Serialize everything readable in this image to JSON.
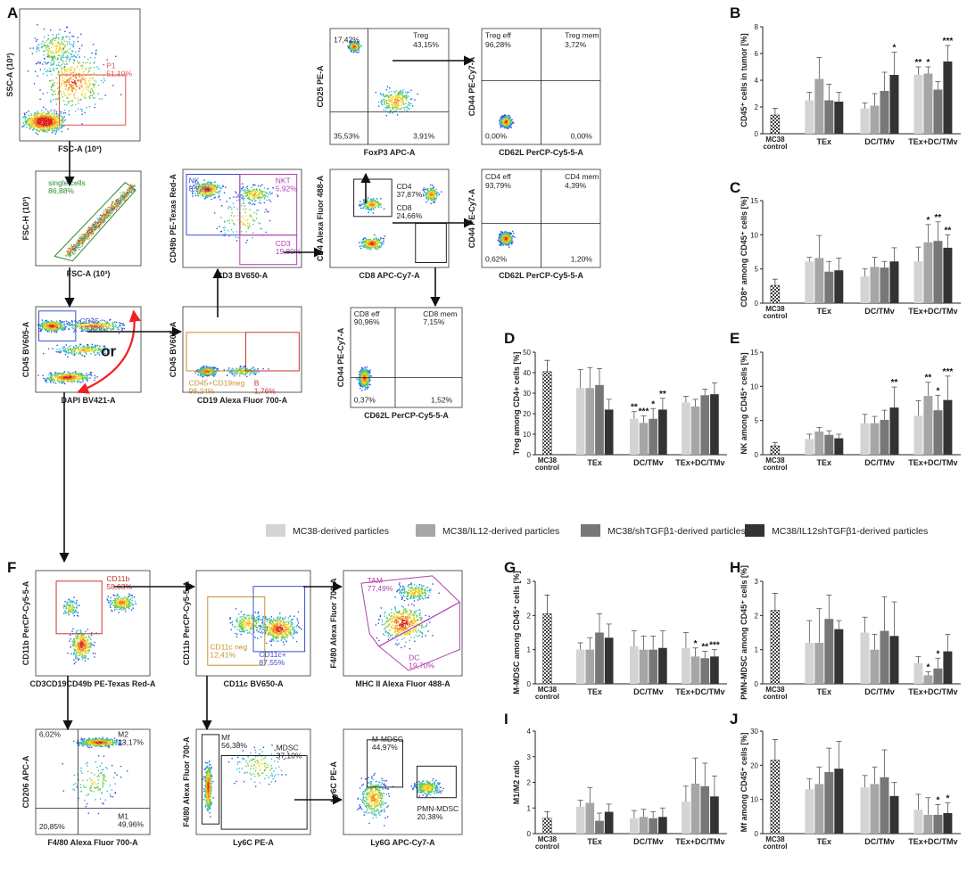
{
  "panel_labels": [
    "A",
    "B",
    "C",
    "D",
    "E",
    "F",
    "G",
    "H",
    "I",
    "J"
  ],
  "flow_panels": [
    {
      "id": "p1",
      "x_label": "FSC-A (10³)",
      "y_label": "SSC-A (10³)",
      "gates": [
        {
          "name": "P1",
          "value": "51,10%",
          "color": "#e0524f"
        }
      ]
    },
    {
      "id": "single",
      "x_label": "FSC-A (10³)",
      "y_label": "FSC-H (10³)",
      "gates": [
        {
          "name": "single cells",
          "value": "86,88%",
          "color": "#2d8a2d"
        }
      ]
    },
    {
      "id": "cd45",
      "x_label": "DAPI BV421-A",
      "y_label": "CD45 BV605-A",
      "gates": [
        {
          "name": "CD45",
          "value": "13,82%",
          "color": "#3b4fd0"
        }
      ],
      "annotation": "or"
    },
    {
      "id": "cd19",
      "x_label": "CD19 Alexa Fluor 700-A",
      "y_label": "CD45 BV605-A",
      "gates": [
        {
          "name": "CD45+CD19neg",
          "value": "98,24%",
          "color": "#c8922f"
        },
        {
          "name": "B",
          "value": "1,76%",
          "color": "#c33"
        }
      ]
    },
    {
      "id": "cd49b",
      "x_label": "CD3 BV650-A",
      "y_label": "CD49b PE-Texas Red-A",
      "gates": [
        {
          "name": "NK",
          "value": "8,22%",
          "color": "#3b4fd0"
        },
        {
          "name": "NKT",
          "value": "5,92%",
          "color": "#b13fb1"
        },
        {
          "name": "CD3",
          "value": "19,80%",
          "color": "#b13fb1"
        }
      ]
    },
    {
      "id": "cd25",
      "x_label": "FoxP3 APC-A",
      "y_label": "CD25 PE-A",
      "quadrants": [
        "17,42%",
        "Treg",
        "43,15%",
        "35,53%",
        "3,91%"
      ]
    },
    {
      "id": "tregq",
      "x_label": "CD62L PerCP-Cy5-5-A",
      "y_label": "CD44 PE-Cy7-A",
      "quadrants": [
        "Treg eff",
        "96,28%",
        "Treg mem",
        "3,72%",
        "0,00%",
        "0,00%"
      ]
    },
    {
      "id": "cd4cd8",
      "x_label": "CD8 APC-Cy7-A",
      "y_label": "CD4 Alexa Fluor 488-A",
      "gates": [
        {
          "name": "CD4",
          "value": "37,87%",
          "color": "#222"
        },
        {
          "name": "CD8",
          "value": "24,66%",
          "color": "#222"
        }
      ]
    },
    {
      "id": "cd4q",
      "x_label": "CD62L PerCP-Cy5-5-A",
      "y_label": "CD44 PE-Cy7-A",
      "quadrants": [
        "CD4 eff",
        "93,79%",
        "CD4 mem",
        "4,39%",
        "0,62%",
        "1,20%"
      ]
    },
    {
      "id": "cd8q",
      "x_label": "CD62L PerCP-Cy5-5-A",
      "y_label": "CD44 PE-Cy7-A",
      "quadrants": [
        "CD8 eff",
        "90,96%",
        "CD8 mem",
        "7,15%",
        "0,37%",
        "1,52%"
      ]
    },
    {
      "id": "cd11b",
      "x_label": "CD3CD19CD49b PE-Texas Red-A",
      "y_label": "CD11b PerCP-Cy5-5-A",
      "gates": [
        {
          "name": "CD11b",
          "value": "58,63%",
          "color": "#c33"
        }
      ]
    },
    {
      "id": "cd11c",
      "x_label": "CD11c BV650-A",
      "y_label": "CD11b PerCP-Cy5-5-A",
      "gates": [
        {
          "name": "CD11c neg",
          "value": "12,41%",
          "color": "#c8922f"
        },
        {
          "name": "CD11c+",
          "value": "87,55%",
          "color": "#3b4fd0"
        }
      ]
    },
    {
      "id": "mhc",
      "x_label": "MHC II Alexa Fluor 488-A",
      "y_label": "F4/80 Alexa Fluor 700-A",
      "gates": [
        {
          "name": "TAM",
          "value": "77,49%",
          "color": "#b13fb1"
        },
        {
          "name": "DC",
          "value": "19,70%",
          "color": "#b13fb1"
        }
      ]
    },
    {
      "id": "cd206",
      "x_label": "F4/80 Alexa Fluor 700-A",
      "y_label": "CD206 APC-A",
      "quadrants": [
        "6,02%",
        "M2",
        "23,17%",
        "20,85%",
        "M1",
        "49,96%"
      ]
    },
    {
      "id": "ly6c",
      "x_label": "Ly6C PE-A",
      "y_label": "F4/80 Alexa Fluor 700-A",
      "gates": [
        {
          "name": "Mf",
          "value": "56,38%",
          "color": "#222"
        },
        {
          "name": "MDSC",
          "value": "37,10%",
          "color": "#222"
        }
      ]
    },
    {
      "id": "ly6g",
      "x_label": "Ly6G APC-Cy7-A",
      "y_label": "Ly6C PE-A",
      "gates": [
        {
          "name": "M-MDSC",
          "value": "44,97%",
          "color": "#222"
        },
        {
          "name": "PMN-MDSC",
          "value": "20,38%",
          "color": "#222"
        }
      ]
    }
  ],
  "legend": [
    "MC38-derived particles",
    "MC38/IL12-derived particles",
    "MC38/shTGFβ1-derived particles",
    "MC38/IL12shTGFβ1-derived particles"
  ],
  "series_colors": [
    "#d4d4d4",
    "#a6a6a6",
    "#777777",
    "#333333"
  ],
  "control_color": "#555555",
  "chart_data": [
    {
      "panel": "B",
      "type": "bar",
      "ylabel": "CD45⁺ cells in tumor [%]",
      "ylim": [
        0,
        8
      ],
      "yticks": [
        0,
        2,
        4,
        6,
        8
      ],
      "control_label": "MC38 control",
      "control": {
        "value": 1.4,
        "err": 0.5
      },
      "categories": [
        "TEx",
        "DC/TMv",
        "TEx+DC/TMv"
      ],
      "series": [
        {
          "name": "MC38-derived particles",
          "values": [
            2.5,
            1.9,
            4.4
          ],
          "err": [
            0.6,
            0.4,
            0.6
          ],
          "stars": [
            "",
            "",
            "**"
          ]
        },
        {
          "name": "MC38/IL12-derived particles",
          "values": [
            4.1,
            2.1,
            4.5
          ],
          "err": [
            1.6,
            0.9,
            0.5
          ],
          "stars": [
            "",
            "",
            "*"
          ]
        },
        {
          "name": "MC38/shTGFβ1-derived particles",
          "values": [
            2.5,
            3.2,
            3.3
          ],
          "err": [
            1.2,
            1.4,
            0.6
          ],
          "stars": [
            "",
            "",
            ""
          ]
        },
        {
          "name": "MC38/IL12shTGFβ1-derived particles",
          "values": [
            2.4,
            4.4,
            5.4
          ],
          "err": [
            0.7,
            1.7,
            1.2
          ],
          "stars": [
            "",
            "*",
            "***"
          ]
        }
      ]
    },
    {
      "panel": "C",
      "type": "bar",
      "ylabel": "CD8⁺ among CD45⁺ cells [%]",
      "ylim": [
        0,
        15
      ],
      "yticks": [
        0,
        5,
        10,
        15
      ],
      "control_label": "MC38 control",
      "control": {
        "value": 2.6,
        "err": 0.9
      },
      "categories": [
        "TEx",
        "DC/TMv",
        "TEx+DC/TMv"
      ],
      "series": [
        {
          "name": "MC38-derived particles",
          "values": [
            6.1,
            3.9,
            6.1
          ],
          "err": [
            0.6,
            1.1,
            2.1
          ],
          "stars": [
            "",
            "",
            ""
          ]
        },
        {
          "name": "MC38/IL12-derived particles",
          "values": [
            6.6,
            5.3,
            8.9
          ],
          "err": [
            3.3,
            1.4,
            2.6
          ],
          "stars": [
            "",
            "",
            "*"
          ]
        },
        {
          "name": "MC38/shTGFβ1-derived particles",
          "values": [
            4.6,
            5.2,
            9.1
          ],
          "err": [
            1.5,
            0.9,
            2.8
          ],
          "stars": [
            "",
            "",
            "**"
          ]
        },
        {
          "name": "MC38/IL12shTGFβ1-derived particles",
          "values": [
            4.8,
            6.1,
            8.1
          ],
          "err": [
            1.8,
            2.0,
            1.9
          ],
          "stars": [
            "",
            "",
            "**"
          ]
        }
      ]
    },
    {
      "panel": "D",
      "type": "bar",
      "ylabel": "Treg among CD4+ cells [%]",
      "ylim": [
        0,
        50
      ],
      "yticks": [
        0,
        10,
        20,
        30,
        40,
        50
      ],
      "control_label": "MC38 control",
      "control": {
        "value": 40.5,
        "err": 5.5
      },
      "categories": [
        "TEx",
        "DC/TMv",
        "TEx+DC/TMv"
      ],
      "series": [
        {
          "name": "MC38-derived particles",
          "values": [
            32.5,
            17.5,
            25.5
          ],
          "err": [
            9.0,
            3.5,
            3.0
          ],
          "stars": [
            "",
            "**",
            ""
          ]
        },
        {
          "name": "MC38/IL12-derived particles",
          "values": [
            32.5,
            15.5,
            23.5
          ],
          "err": [
            10.0,
            3.5,
            3.5
          ],
          "stars": [
            "",
            "***",
            ""
          ]
        },
        {
          "name": "MC38/shTGFβ1-derived particles",
          "values": [
            34.0,
            17.5,
            29.0
          ],
          "err": [
            8.0,
            5.0,
            3.0
          ],
          "stars": [
            "",
            "*",
            ""
          ]
        },
        {
          "name": "MC38/IL12shTGFβ1-derived particles",
          "values": [
            22.0,
            22.0,
            29.5
          ],
          "err": [
            5.0,
            5.5,
            5.5
          ],
          "stars": [
            "",
            "**",
            ""
          ]
        }
      ]
    },
    {
      "panel": "E",
      "type": "bar",
      "ylabel": "NK among CD45⁺ cells [%]",
      "ylim": [
        0,
        15
      ],
      "yticks": [
        0,
        5,
        10,
        15
      ],
      "control_label": "MC38 control",
      "control": {
        "value": 1.3,
        "err": 0.5
      },
      "categories": [
        "TEx",
        "DC/TMv",
        "TEx+DC/TMv"
      ],
      "series": [
        {
          "name": "MC38-derived particles",
          "values": [
            2.3,
            4.6,
            5.7
          ],
          "err": [
            0.7,
            1.3,
            2.2
          ],
          "stars": [
            "",
            "",
            ""
          ]
        },
        {
          "name": "MC38/IL12-derived particles",
          "values": [
            3.4,
            4.6,
            8.6
          ],
          "err": [
            0.6,
            1.0,
            2.0
          ],
          "stars": [
            "",
            "",
            "**"
          ]
        },
        {
          "name": "MC38/shTGFβ1-derived particles",
          "values": [
            2.9,
            5.1,
            6.5
          ],
          "err": [
            0.6,
            1.4,
            2.2
          ],
          "stars": [
            "",
            "",
            "*"
          ]
        },
        {
          "name": "MC38/IL12shTGFβ1-derived particles",
          "values": [
            2.4,
            6.9,
            8.0
          ],
          "err": [
            0.6,
            3.0,
            3.5
          ],
          "stars": [
            "",
            "**",
            "***"
          ]
        }
      ]
    },
    {
      "panel": "G",
      "type": "bar",
      "ylabel": "M-MDSC among CD45⁺ cells [%]",
      "ylim": [
        0,
        3
      ],
      "yticks": [
        0,
        1,
        2,
        3
      ],
      "control_label": "MC38 control",
      "control": {
        "value": 2.05,
        "err": 0.55
      },
      "categories": [
        "TEx",
        "DC/TMv",
        "TEx+DC/TMv"
      ],
      "series": [
        {
          "name": "MC38-derived particles",
          "values": [
            1.0,
            1.1,
            1.05
          ],
          "err": [
            0.2,
            0.45,
            0.45
          ],
          "stars": [
            "",
            "",
            ""
          ]
        },
        {
          "name": "MC38/IL12-derived particles",
          "values": [
            1.0,
            1.0,
            0.8
          ],
          "err": [
            0.35,
            0.4,
            0.25
          ],
          "stars": [
            "",
            "",
            "*"
          ]
        },
        {
          "name": "MC38/shTGFβ1-derived particles",
          "values": [
            1.5,
            1.0,
            0.75
          ],
          "err": [
            0.55,
            0.4,
            0.2
          ],
          "stars": [
            "",
            "",
            "**"
          ]
        },
        {
          "name": "MC38/IL12shTGFβ1-derived particles",
          "values": [
            1.35,
            1.05,
            0.8
          ],
          "err": [
            0.4,
            0.5,
            0.2
          ],
          "stars": [
            "",
            "",
            "***"
          ]
        }
      ]
    },
    {
      "panel": "H",
      "type": "bar",
      "ylabel": "PMN-MDSC among CD45⁺ cells [%]",
      "ylim": [
        0,
        3
      ],
      "yticks": [
        0,
        1,
        2,
        3
      ],
      "control_label": "MC38 control",
      "control": {
        "value": 2.15,
        "err": 0.5
      },
      "categories": [
        "TEx",
        "DC/TMv",
        "TEx+DC/TMv"
      ],
      "series": [
        {
          "name": "MC38-derived particles",
          "values": [
            1.2,
            1.5,
            0.6
          ],
          "err": [
            0.65,
            0.45,
            0.2
          ],
          "stars": [
            "",
            "",
            ""
          ]
        },
        {
          "name": "MC38/IL12-derived particles",
          "values": [
            1.2,
            1.0,
            0.25
          ],
          "err": [
            1.0,
            0.45,
            0.1
          ],
          "stars": [
            "",
            "",
            "*"
          ]
        },
        {
          "name": "MC38/shTGFβ1-derived particles",
          "values": [
            1.9,
            1.55,
            0.45
          ],
          "err": [
            0.7,
            1.0,
            0.3
          ],
          "stars": [
            "",
            "",
            "*"
          ]
        },
        {
          "name": "MC38/IL12shTGFβ1-derived particles",
          "values": [
            1.6,
            1.4,
            0.95
          ],
          "err": [
            0.25,
            1.0,
            0.5
          ],
          "stars": [
            "",
            "",
            ""
          ]
        }
      ]
    },
    {
      "panel": "I",
      "type": "bar",
      "ylabel": "M1/M2 ratio",
      "ylim": [
        0,
        4
      ],
      "yticks": [
        0,
        1,
        2,
        3,
        4
      ],
      "control_label": "MC38 control",
      "control": {
        "value": 0.6,
        "err": 0.25
      },
      "categories": [
        "TEx",
        "DC/TMv",
        "TEx+DC/TMv"
      ],
      "series": [
        {
          "name": "MC38-derived particles",
          "values": [
            1.05,
            0.6,
            1.25
          ],
          "err": [
            0.25,
            0.3,
            0.6
          ],
          "stars": [
            "",
            "",
            ""
          ]
        },
        {
          "name": "MC38/IL12-derived particles",
          "values": [
            1.2,
            0.65,
            1.95
          ],
          "err": [
            0.6,
            0.3,
            1.0
          ],
          "stars": [
            "",
            "",
            ""
          ]
        },
        {
          "name": "MC38/shTGFβ1-derived particles",
          "values": [
            0.5,
            0.6,
            1.85
          ],
          "err": [
            0.3,
            0.25,
            0.9
          ],
          "stars": [
            "",
            "",
            ""
          ]
        },
        {
          "name": "MC38/IL12shTGFβ1-derived particles",
          "values": [
            0.85,
            0.65,
            1.45
          ],
          "err": [
            0.3,
            0.35,
            0.8
          ],
          "stars": [
            "",
            "",
            ""
          ]
        }
      ]
    },
    {
      "panel": "J",
      "type": "bar",
      "ylabel": "Mf among CD45⁺ cells [%]",
      "ylim": [
        0,
        30
      ],
      "yticks": [
        0,
        10,
        20,
        30
      ],
      "control_label": "MC38 control",
      "control": {
        "value": 21.5,
        "err": 6.0
      },
      "categories": [
        "TEx",
        "DC/TMv",
        "TEx+DC/TMv"
      ],
      "series": [
        {
          "name": "MC38-derived particles",
          "values": [
            13.0,
            13.5,
            7.0
          ],
          "err": [
            3.0,
            3.5,
            4.5
          ],
          "stars": [
            "",
            "",
            ""
          ]
        },
        {
          "name": "MC38/IL12-derived particles",
          "values": [
            14.5,
            14.5,
            5.5
          ],
          "err": [
            5.0,
            5.0,
            5.0
          ],
          "stars": [
            "",
            "",
            ""
          ]
        },
        {
          "name": "MC38/shTGFβ1-derived particles",
          "values": [
            18.0,
            16.5,
            5.5
          ],
          "err": [
            7.0,
            8.0,
            3.0
          ],
          "stars": [
            "",
            "",
            "*"
          ]
        },
        {
          "name": "MC38/IL12shTGFβ1-derived particles",
          "values": [
            19.0,
            11.0,
            6.0
          ],
          "err": [
            8.0,
            4.0,
            3.0
          ],
          "stars": [
            "",
            "",
            "*"
          ]
        }
      ]
    }
  ]
}
